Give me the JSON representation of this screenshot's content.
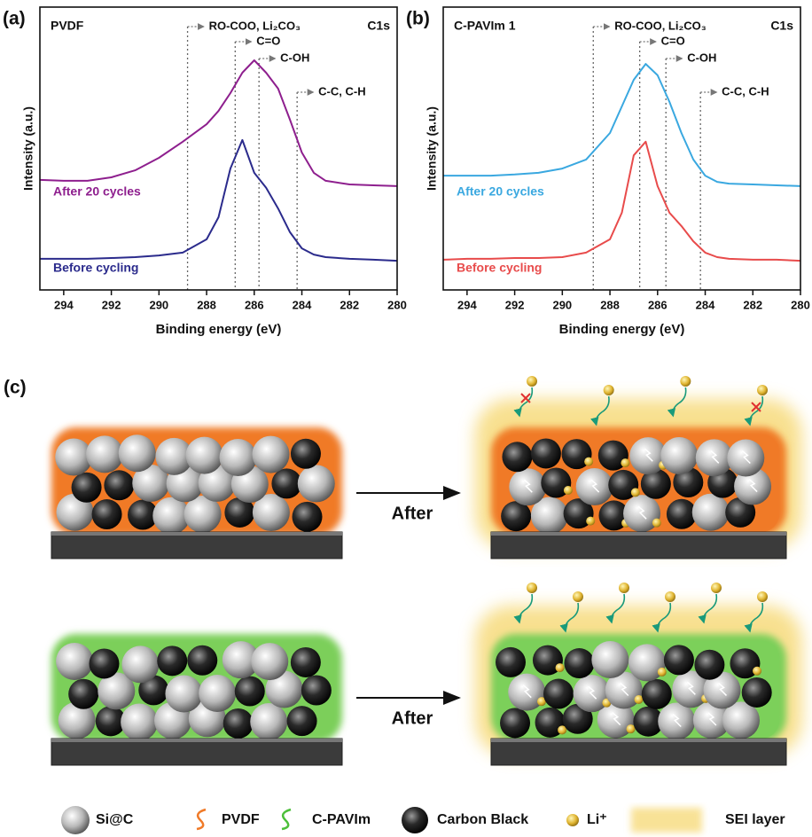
{
  "chart_data": [
    {
      "type": "line",
      "panel_label": "(a)",
      "title": "PVDF",
      "subtitle": "C1s",
      "xlabel": "Binding energy (eV)",
      "ylabel": "Intensity (a.u.)",
      "x": [
        295,
        294,
        293,
        292,
        291,
        290,
        289,
        288,
        287.5,
        287,
        286.5,
        286,
        285.5,
        285,
        284.5,
        284,
        283.5,
        283,
        282,
        281,
        280
      ],
      "xlim": [
        295,
        280
      ],
      "xticks": [
        294,
        292,
        290,
        288,
        286,
        284,
        282,
        280
      ],
      "ylim": [
        0,
        100
      ],
      "series": [
        {
          "name": "After 20 cycles",
          "color": "#8e1f8e",
          "values": [
            38.9,
            38.6,
            38.6,
            39.8,
            42.3,
            46.7,
            52.4,
            58.6,
            63.3,
            69.6,
            76.8,
            81.2,
            76.8,
            71.2,
            60.2,
            48.6,
            41.4,
            38.6,
            37.3,
            37.0,
            36.7
          ]
        },
        {
          "name": "Before cycling",
          "color": "#2b2b8c",
          "values": [
            11.0,
            11.0,
            11.0,
            11.3,
            11.6,
            12.2,
            13.2,
            17.9,
            25.7,
            42.9,
            53.0,
            41.4,
            36.1,
            28.8,
            20.4,
            14.7,
            12.5,
            11.6,
            11.0,
            10.7,
            10.3
          ]
        }
      ],
      "reference_lines": [
        {
          "x": 288.8,
          "label": "RO-COO, Li₂CO₃"
        },
        {
          "x": 286.8,
          "label": "C=O"
        },
        {
          "x": 285.8,
          "label": "C-OH"
        },
        {
          "x": 284.2,
          "label": "C-C, C-H"
        }
      ]
    },
    {
      "type": "line",
      "panel_label": "(b)",
      "title": "C-PAVIm 1",
      "subtitle": "C1s",
      "xlabel": "Binding energy (eV)",
      "ylabel": "Intensity (a.u.)",
      "x": [
        295,
        294,
        293,
        292,
        291,
        290,
        289,
        288,
        287.5,
        287,
        286.5,
        286,
        285.5,
        285,
        284.5,
        284,
        283.5,
        283,
        282,
        281,
        280
      ],
      "xlim": [
        295,
        280
      ],
      "xticks": [
        294,
        292,
        290,
        288,
        286,
        284,
        282,
        280
      ],
      "ylim": [
        0,
        100
      ],
      "series": [
        {
          "name": "After 20 cycles",
          "color": "#3aa8e0",
          "values": [
            40.4,
            40.4,
            40.4,
            40.8,
            41.4,
            42.9,
            46.1,
            55.5,
            64.9,
            74.3,
            79.9,
            75.9,
            66.5,
            55.5,
            46.1,
            40.4,
            38.2,
            37.6,
            37.3,
            37.0,
            36.7
          ]
        },
        {
          "name": "Before cycling",
          "color": "#e84b4b",
          "values": [
            10.7,
            11.0,
            11.0,
            11.3,
            11.3,
            11.6,
            13.2,
            17.9,
            27.3,
            47.6,
            52.4,
            36.7,
            27.3,
            22.6,
            17.2,
            13.2,
            11.6,
            11.0,
            10.7,
            10.7,
            10.3
          ]
        }
      ],
      "reference_lines": [
        {
          "x": 288.7,
          "label": "RO-COO, Li₂CO₃"
        },
        {
          "x": 286.75,
          "label": "C=O"
        },
        {
          "x": 285.65,
          "label": "C-OH"
        },
        {
          "x": 284.2,
          "label": "C-C, C-H"
        }
      ]
    }
  ],
  "schematic": {
    "panel_label": "(c)",
    "arrow_labels": [
      "After",
      "After"
    ],
    "legend": [
      "Si@C",
      "PVDF",
      "C-PAVIm",
      "Carbon Black",
      "Li⁺",
      "SEI layer"
    ]
  }
}
